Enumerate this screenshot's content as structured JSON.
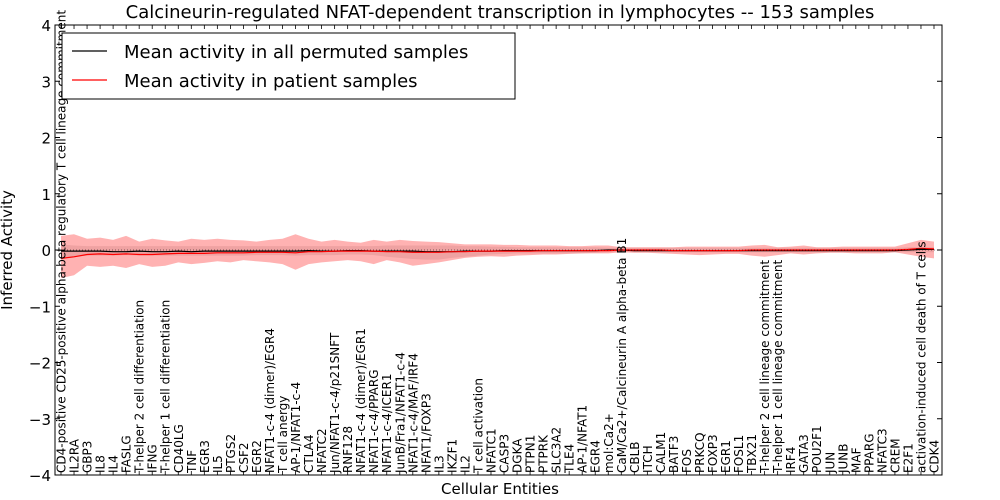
{
  "chart_data": {
    "type": "line",
    "title": "Calcineurin-regulated NFAT-dependent transcription in lymphocytes -- 153 samples",
    "xlabel": "Cellular Entities",
    "ylabel": "Inferred Activity",
    "ylim": [
      -4,
      4
    ],
    "yticks": [
      -4,
      -3,
      -2,
      -1,
      0,
      1,
      2,
      3,
      4
    ],
    "ytick_labels": [
      "−4",
      "−3",
      "−2",
      "−1",
      "0",
      "1",
      "2",
      "3",
      "4"
    ],
    "grid": false,
    "legend_position": "top-left",
    "categories": [
      "CD4-positive CD25-positive alpha-beta regulatory T cell lineage commitment",
      "IL2RA",
      "GBP3",
      "IL8",
      "IL4",
      "FASLG",
      "T-helper 2 cell differentiation",
      "IFNG",
      "T-helper 1 cell differentiation",
      "CD40LG",
      "TNF",
      "EGR3",
      "IL5",
      "PTGS2",
      "CSF2",
      "EGR2",
      "NFAT1-c-4 (dimer)/EGR4",
      "T cell anergy",
      "AP-1/NFAT1-c-4",
      "CTLA4",
      "NFATC2",
      "Jun/NFAT1-c-4/p21SNFT",
      "RNF128",
      "NFAT1-c-4 (dimer)/EGR1",
      "NFAT1-c-4/PPARG",
      "NFAT1-c-4/ICER1",
      "JunB/Fra1/NFAT1-c-4",
      "NFAT1-c-4/MAF/IRF4",
      "NFAT1/FOXP3",
      "IL3",
      "IKZF1",
      "IL2",
      "T cell activation",
      "NFATC1",
      "CASP3",
      "DGKA",
      "PTPN1",
      "PTPRK",
      "SLC3A2",
      "TLE4",
      "AP-1/NFAT1",
      "EGR4",
      "mol:Ca2+",
      "CaM/Ca2+/Calcineurin A alpha-beta B1",
      "CBLB",
      "ITCH",
      "CALM1",
      "BATF3",
      "FOS",
      "PRKCQ",
      "FOXP3",
      "EGR1",
      "FOSL1",
      "TBX21",
      "T-helper 2 cell lineage commitment",
      "T-helper 1 cell lineage commitment",
      "IRF4",
      "GATA3",
      "POU2F1",
      "JUN",
      "JUNB",
      "MAF",
      "PPARG",
      "NFATC3",
      "CREM",
      "E2F1",
      "activation-induced cell death of T cells",
      "CDK4"
    ],
    "series": [
      {
        "name": "Mean activity in all permuted samples",
        "color": "#000000",
        "band_color": "#c8c8c8",
        "values": [
          -0.02,
          -0.02,
          -0.02,
          -0.02,
          -0.03,
          -0.03,
          -0.02,
          -0.03,
          -0.03,
          -0.02,
          -0.03,
          -0.02,
          -0.02,
          -0.02,
          -0.02,
          -0.02,
          -0.02,
          -0.02,
          -0.02,
          -0.01,
          -0.02,
          -0.02,
          -0.01,
          -0.01,
          -0.02,
          -0.02,
          -0.02,
          -0.02,
          -0.03,
          -0.03,
          -0.03,
          -0.02,
          -0.02,
          -0.02,
          -0.01,
          -0.01,
          -0.01,
          -0.01,
          -0.01,
          -0.01,
          -0.01,
          -0.01,
          0,
          0,
          -0.01,
          -0.01,
          -0.01,
          -0.01,
          -0.01,
          -0.01,
          -0.01,
          -0.01,
          -0.01,
          -0.01,
          -0.01,
          -0.01,
          -0.01,
          -0.01,
          -0.01,
          -0.01,
          -0.01,
          -0.01,
          -0.01,
          -0.01,
          -0.01,
          0,
          0.01,
          0.01
        ],
        "lower": [
          -0.14,
          -0.12,
          -0.1,
          -0.1,
          -0.1,
          -0.09,
          -0.1,
          -0.1,
          -0.1,
          -0.1,
          -0.1,
          -0.1,
          -0.1,
          -0.1,
          -0.1,
          -0.09,
          -0.09,
          -0.09,
          -0.1,
          -0.09,
          -0.09,
          -0.09,
          -0.08,
          -0.08,
          -0.09,
          -0.12,
          -0.14,
          -0.16,
          -0.17,
          -0.17,
          -0.14,
          -0.12,
          -0.1,
          -0.08,
          -0.07,
          -0.06,
          -0.06,
          -0.06,
          -0.06,
          -0.06,
          -0.06,
          -0.05,
          -0.04,
          -0.03,
          -0.04,
          -0.04,
          -0.04,
          -0.04,
          -0.04,
          -0.04,
          -0.04,
          -0.04,
          -0.04,
          -0.04,
          -0.04,
          -0.04,
          -0.04,
          -0.04,
          -0.04,
          -0.04,
          -0.04,
          -0.04,
          -0.04,
          -0.04,
          -0.04,
          -0.04,
          -0.04,
          -0.04
        ],
        "upper": [
          0.1,
          0.08,
          0.07,
          0.07,
          0.07,
          0.07,
          0.07,
          0.07,
          0.07,
          0.07,
          0.07,
          0.07,
          0.07,
          0.07,
          0.07,
          0.07,
          0.07,
          0.07,
          0.07,
          0.07,
          0.07,
          0.07,
          0.07,
          0.07,
          0.07,
          0.08,
          0.08,
          0.08,
          0.08,
          0.08,
          0.08,
          0.07,
          0.07,
          0.06,
          0.06,
          0.05,
          0.05,
          0.05,
          0.05,
          0.05,
          0.05,
          0.05,
          0.04,
          0.04,
          0.04,
          0.04,
          0.04,
          0.04,
          0.04,
          0.04,
          0.04,
          0.04,
          0.04,
          0.04,
          0.04,
          0.04,
          0.04,
          0.04,
          0.04,
          0.04,
          0.04,
          0.04,
          0.04,
          0.04,
          0.04,
          0.05,
          0.05,
          0.05
        ]
      },
      {
        "name": "Mean activity in patient samples",
        "color": "#ff0000",
        "band_color": "#ff6666",
        "values": [
          -0.15,
          -0.12,
          -0.08,
          -0.07,
          -0.08,
          -0.07,
          -0.08,
          -0.08,
          -0.07,
          -0.06,
          -0.06,
          -0.06,
          -0.05,
          -0.05,
          -0.05,
          -0.04,
          -0.04,
          -0.04,
          -0.05,
          -0.03,
          -0.03,
          -0.02,
          -0.02,
          -0.02,
          -0.02,
          -0.03,
          -0.03,
          -0.04,
          -0.04,
          -0.04,
          -0.03,
          -0.03,
          -0.02,
          -0.02,
          -0.02,
          -0.02,
          -0.02,
          -0.01,
          -0.01,
          -0.01,
          -0.01,
          -0.01,
          -0.01,
          0,
          0,
          0,
          0,
          -0.01,
          -0.01,
          -0.01,
          -0.01,
          -0.01,
          -0.01,
          0,
          0,
          0,
          0,
          0,
          0,
          0,
          0,
          0,
          0,
          0,
          0,
          0.01,
          0.03,
          0.02
        ],
        "lower": [
          -0.5,
          -0.45,
          -0.28,
          -0.3,
          -0.28,
          -0.32,
          -0.25,
          -0.3,
          -0.28,
          -0.22,
          -0.25,
          -0.23,
          -0.2,
          -0.22,
          -0.18,
          -0.2,
          -0.22,
          -0.25,
          -0.35,
          -0.25,
          -0.22,
          -0.2,
          -0.18,
          -0.2,
          -0.25,
          -0.18,
          -0.22,
          -0.28,
          -0.25,
          -0.22,
          -0.18,
          -0.14,
          -0.12,
          -0.11,
          -0.12,
          -0.1,
          -0.09,
          -0.08,
          -0.08,
          -0.07,
          -0.06,
          -0.06,
          -0.06,
          -0.04,
          -0.05,
          -0.05,
          -0.06,
          -0.07,
          -0.08,
          -0.09,
          -0.08,
          -0.07,
          -0.07,
          -0.1,
          -0.12,
          -0.09,
          -0.06,
          -0.08,
          -0.06,
          -0.05,
          -0.05,
          -0.06,
          -0.06,
          -0.06,
          -0.04,
          -0.08,
          -0.12,
          -0.15
        ],
        "upper": [
          0.25,
          0.28,
          0.2,
          0.22,
          0.18,
          0.25,
          0.15,
          0.2,
          0.17,
          0.15,
          0.2,
          0.18,
          0.2,
          0.18,
          0.17,
          0.15,
          0.18,
          0.2,
          0.28,
          0.2,
          0.15,
          0.18,
          0.15,
          0.13,
          0.18,
          0.15,
          0.18,
          0.16,
          0.15,
          0.14,
          0.12,
          0.1,
          0.1,
          0.1,
          0.09,
          0.09,
          0.08,
          0.08,
          0.08,
          0.07,
          0.07,
          0.08,
          0.08,
          0.05,
          0.05,
          0.05,
          0.05,
          0.05,
          0.06,
          0.06,
          0.06,
          0.06,
          0.06,
          0.08,
          0.09,
          0.05,
          0.06,
          0.08,
          0.05,
          0.05,
          0.06,
          0.06,
          0.06,
          0.06,
          0.06,
          0.12,
          0.18,
          0.15
        ]
      }
    ]
  }
}
